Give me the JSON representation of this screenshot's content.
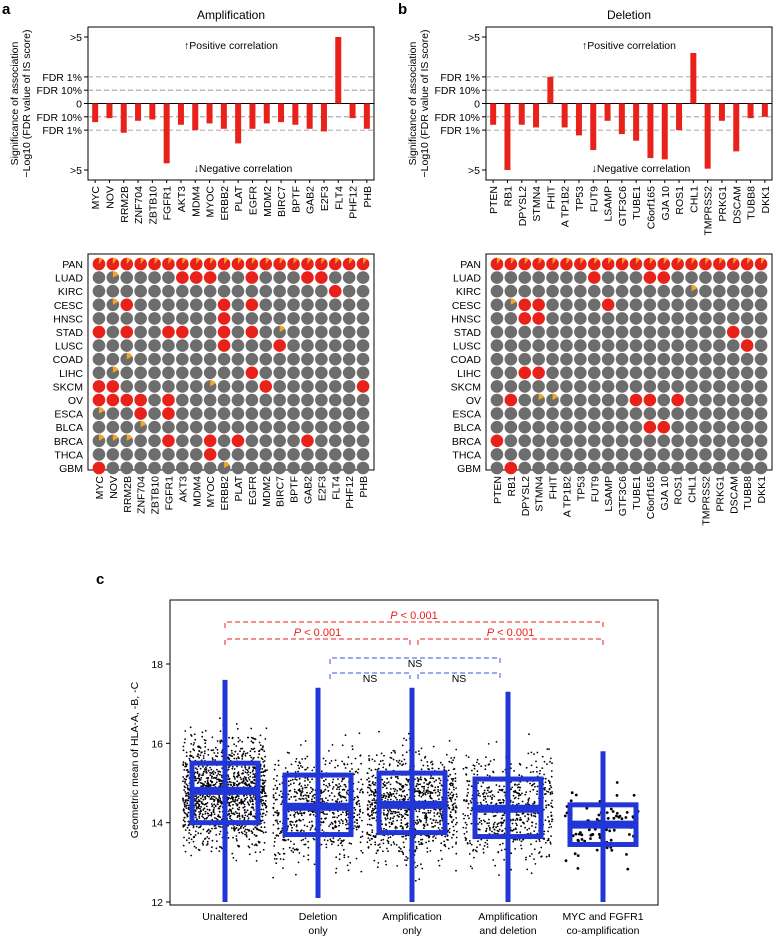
{
  "panel_labels": [
    "a",
    "b",
    "c"
  ],
  "colors": {
    "bar": "#e8211b",
    "dot_grey": "#6d6d6d",
    "dot_red": "#e8211b",
    "dot_orange": "#f5a623",
    "box": "#2236d8",
    "sig_red": "#e8211b",
    "ns_blue": "#3a52e0"
  },
  "chart_data": [
    {
      "type": "bar",
      "panel": "a",
      "title": "Amplification",
      "ylabel_line1": "Significance of association",
      "ylabel_line2": "−Log10 (FDR value of IS score)",
      "yticks": [
        ">5",
        "FDR 1%",
        "FDR 10%",
        "0",
        "FDR 10%",
        "FDR 1%",
        ">5"
      ],
      "annotation_positive": "↑Positive correlation",
      "annotation_negative": "↓Negative correlation",
      "ylim": [
        -5,
        5
      ],
      "categories": [
        "MYC",
        "NOV",
        "RRM2B",
        "ZNF704",
        "ZBTB10",
        "FGFR1",
        "AKT3",
        "MDM4",
        "MYOC",
        "ERBB2",
        "PLAT",
        "EGFR",
        "MDM2",
        "BIRC7",
        "BPTF",
        "GAB2",
        "E2F3",
        "FLT4",
        "PHF12",
        "PHB"
      ],
      "values": [
        -1.4,
        -1.1,
        -2.2,
        -1.3,
        -1.2,
        -4.5,
        -1.6,
        -2.0,
        -1.5,
        -1.9,
        -3.0,
        -1.9,
        -1.5,
        -1.4,
        -1.6,
        -1.9,
        -2.1,
        5.0,
        -1.1,
        -1.9
      ]
    },
    {
      "type": "bar",
      "panel": "b",
      "title": "Deletion",
      "ylabel_line1": "Significance of association",
      "ylabel_line2": "−Log10 (FDR value of IS score)",
      "yticks": [
        ">5",
        "FDR 1%",
        "FDR 10%",
        "0",
        "FDR 10%",
        "FDR 1%",
        ">5"
      ],
      "annotation_positive": "↑Positive correlation",
      "annotation_negative": "↓Negative correlation",
      "ylim": [
        -5,
        5
      ],
      "categories": [
        "PTEN",
        "RB1",
        "DPYSL2",
        "STMN4",
        "FHIT",
        "A TP1B2",
        "TP53",
        "FUT9",
        "LSAMP",
        "GTF3C6",
        "TUBE1",
        "C6orf165",
        "GJA 10",
        "ROS1",
        "CHL1",
        "TMPRSS2",
        "PRKG1",
        "DSCAM",
        "TUBB8",
        "DKK1"
      ],
      "values": [
        -1.6,
        -5.0,
        -1.6,
        -1.8,
        2.0,
        -1.8,
        -2.4,
        -3.5,
        -1.3,
        -2.3,
        -2.8,
        -4.1,
        -4.2,
        -2.0,
        3.8,
        -4.9,
        -1.3,
        -3.6,
        -1.1,
        -1.0
      ]
    },
    {
      "type": "heatmap",
      "panel": "a",
      "rows": [
        "PAN",
        "LUAD",
        "KIRC",
        "CESC",
        "HNSC",
        "STAD",
        "LUSC",
        "COAD",
        "LIHC",
        "SKCM",
        "OV",
        "ESCA",
        "BLCA",
        "BRCA",
        "THCA",
        "GBM"
      ],
      "columns": [
        "MYC",
        "NOV",
        "RRM2B",
        "ZNF704",
        "ZBTB10",
        "FGFR1",
        "AKT3",
        "MDM4",
        "MYOC",
        "ERBB2",
        "PLAT",
        "EGFR",
        "MDM2",
        "BIRC7",
        "BPTF",
        "GAB2",
        "E2F3",
        "FLT4",
        "PHF12",
        "PHB"
      ],
      "red_cells": [
        [
          0,
          0
        ],
        [
          0,
          1
        ],
        [
          0,
          2
        ],
        [
          0,
          3
        ],
        [
          0,
          4
        ],
        [
          0,
          5
        ],
        [
          0,
          6
        ],
        [
          0,
          7
        ],
        [
          0,
          8
        ],
        [
          0,
          9
        ],
        [
          0,
          10
        ],
        [
          0,
          11
        ],
        [
          0,
          12
        ],
        [
          0,
          13
        ],
        [
          0,
          14
        ],
        [
          0,
          15
        ],
        [
          0,
          16
        ],
        [
          0,
          17
        ],
        [
          0,
          18
        ],
        [
          0,
          19
        ],
        [
          1,
          6
        ],
        [
          1,
          7
        ],
        [
          1,
          8
        ],
        [
          1,
          11
        ],
        [
          1,
          15
        ],
        [
          1,
          16
        ],
        [
          2,
          17
        ],
        [
          3,
          2
        ],
        [
          3,
          9
        ],
        [
          3,
          11
        ],
        [
          4,
          9
        ],
        [
          5,
          0
        ],
        [
          5,
          2
        ],
        [
          5,
          5
        ],
        [
          5,
          6
        ],
        [
          5,
          9
        ],
        [
          5,
          11
        ],
        [
          6,
          9
        ],
        [
          6,
          13
        ],
        [
          8,
          11
        ],
        [
          9,
          0
        ],
        [
          9,
          1
        ],
        [
          9,
          12
        ],
        [
          9,
          19
        ],
        [
          10,
          0
        ],
        [
          10,
          1
        ],
        [
          10,
          2
        ],
        [
          10,
          3
        ],
        [
          10,
          5
        ],
        [
          11,
          3
        ],
        [
          11,
          5
        ],
        [
          13,
          5
        ],
        [
          13,
          8
        ],
        [
          13,
          10
        ],
        [
          13,
          15
        ],
        [
          14,
          8
        ],
        [
          15,
          0
        ]
      ],
      "orange_cells": [
        [
          1,
          1
        ],
        [
          3,
          1
        ],
        [
          5,
          13
        ],
        [
          7,
          2
        ],
        [
          8,
          1
        ],
        [
          9,
          8
        ],
        [
          11,
          0
        ],
        [
          12,
          3
        ],
        [
          13,
          0
        ],
        [
          13,
          1
        ],
        [
          13,
          2
        ],
        [
          15,
          9
        ]
      ]
    },
    {
      "type": "heatmap",
      "panel": "b",
      "rows": [
        "PAN",
        "LUAD",
        "KIRC",
        "CESC",
        "HNSC",
        "STAD",
        "LUSC",
        "COAD",
        "LIHC",
        "SKCM",
        "OV",
        "ESCA",
        "BLCA",
        "BRCA",
        "THCA",
        "GBM"
      ],
      "columns": [
        "PTEN",
        "RB1",
        "DPYSL2",
        "STMN4",
        "FHIT",
        "A TP1B2",
        "TP53",
        "FUT9",
        "LSAMP",
        "GTF3C6",
        "TUBE1",
        "C6orf165",
        "GJA 10",
        "ROS1",
        "CHL1",
        "TMPRSS2",
        "PRKG1",
        "DSCAM",
        "TUBB8",
        "DKK1"
      ],
      "red_cells": [
        [
          0,
          0
        ],
        [
          0,
          1
        ],
        [
          0,
          2
        ],
        [
          0,
          3
        ],
        [
          0,
          4
        ],
        [
          0,
          5
        ],
        [
          0,
          6
        ],
        [
          0,
          7
        ],
        [
          0,
          8
        ],
        [
          0,
          9
        ],
        [
          0,
          10
        ],
        [
          0,
          11
        ],
        [
          0,
          12
        ],
        [
          0,
          13
        ],
        [
          0,
          14
        ],
        [
          0,
          15
        ],
        [
          0,
          16
        ],
        [
          0,
          17
        ],
        [
          0,
          18
        ],
        [
          0,
          19
        ],
        [
          1,
          7
        ],
        [
          1,
          11
        ],
        [
          1,
          12
        ],
        [
          3,
          2
        ],
        [
          3,
          3
        ],
        [
          3,
          8
        ],
        [
          4,
          2
        ],
        [
          4,
          3
        ],
        [
          5,
          17
        ],
        [
          6,
          18
        ],
        [
          8,
          2
        ],
        [
          8,
          3
        ],
        [
          10,
          1
        ],
        [
          10,
          10
        ],
        [
          10,
          11
        ],
        [
          10,
          13
        ],
        [
          12,
          11
        ],
        [
          12,
          12
        ],
        [
          13,
          0
        ],
        [
          15,
          1
        ]
      ],
      "orange_cells": [
        [
          2,
          14
        ],
        [
          3,
          1
        ],
        [
          10,
          3
        ],
        [
          10,
          4
        ]
      ]
    },
    {
      "type": "box",
      "panel": "c",
      "ylabel": "Geometric mean of HLA-A, -B, -C",
      "ylim": [
        12,
        18.5
      ],
      "yticks": [
        12,
        14,
        16,
        18
      ],
      "categories": [
        "Unaltered",
        "Deletion only",
        "Amplification only",
        "Amplification and deletion",
        "MYC and FGFR1 co-amplification"
      ],
      "category_lines": [
        [
          "Unaltered"
        ],
        [
          "Deletion",
          "only"
        ],
        [
          "Amplification",
          "only"
        ],
        [
          "Amplification",
          "and deletion"
        ],
        [
          "MYC and FGFR1",
          "co-amplification"
        ]
      ],
      "boxes": [
        {
          "whisker_low": 12.0,
          "q1": 14.0,
          "median": 14.8,
          "q3": 15.5,
          "whisker_high": 17.6
        },
        {
          "whisker_low": 12.1,
          "q1": 13.7,
          "median": 14.4,
          "q3": 15.2,
          "whisker_high": 17.4
        },
        {
          "whisker_low": 12.0,
          "q1": 13.75,
          "median": 14.45,
          "q3": 15.25,
          "whisker_high": 17.4
        },
        {
          "whisker_low": 12.0,
          "q1": 13.65,
          "median": 14.35,
          "q3": 15.1,
          "whisker_high": 17.3
        },
        {
          "whisker_low": 12.0,
          "q1": 13.45,
          "median": 13.95,
          "q3": 14.45,
          "whisker_high": 15.8
        }
      ],
      "comparisons": [
        {
          "between": [
            0,
            4
          ],
          "label_italic": "P",
          "label_rest": " < 0.001",
          "style": "significant"
        },
        {
          "between": [
            0,
            2
          ],
          "label_italic": "P",
          "label_rest": " < 0.001",
          "style": "significant"
        },
        {
          "between": [
            2,
            4
          ],
          "label_italic": "P",
          "label_rest": " < 0.001",
          "style": "significant"
        },
        {
          "between": [
            1,
            3
          ],
          "label": "NS",
          "style": "ns"
        },
        {
          "between": [
            1,
            2
          ],
          "label": "NS",
          "style": "ns"
        },
        {
          "between": [
            2,
            3
          ],
          "label": "NS",
          "style": "ns"
        }
      ]
    }
  ]
}
